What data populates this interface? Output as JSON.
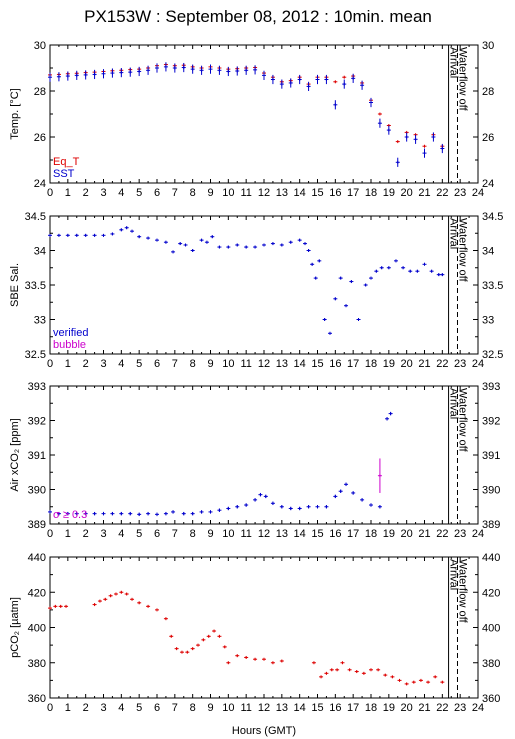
{
  "title": "PX153W : September 08, 2012 : 10min. mean",
  "xaxis": {
    "label": "Hours (GMT)",
    "range": [
      0,
      24
    ],
    "ticks": [
      "0",
      "1",
      "2",
      "3",
      "4",
      "5",
      "6",
      "7",
      "8",
      "9",
      "10",
      "11",
      "12",
      "13",
      "14",
      "15",
      "16",
      "17",
      "18",
      "19",
      "20",
      "21",
      "22",
      "23",
      "24"
    ]
  },
  "events": [
    {
      "label": "Arrival",
      "hour": 22.35,
      "style": "solid"
    },
    {
      "label": "Waterflow off",
      "hour": 22.85,
      "style": "dashed"
    }
  ],
  "colors": {
    "red": "#dd0000",
    "blue": "#0000cc",
    "magenta": "#cc00cc"
  },
  "chart_data": [
    {
      "type": "scatter",
      "ylabel": "Temp. [°C]",
      "ylim": [
        24,
        30
      ],
      "yticks": [
        "24",
        "26",
        "28",
        "30"
      ],
      "grid": false,
      "legend": {
        "placement": "bottom-left",
        "entries": [
          {
            "name": "Eq_T",
            "color": "#dd0000"
          },
          {
            "name": "SST",
            "color": "#0000cc"
          }
        ]
      },
      "series": [
        {
          "name": "Eq_T",
          "color": "#dd0000",
          "err": 0.03,
          "x": [
            0.0,
            0.5,
            1.0,
            1.5,
            2.0,
            2.5,
            3.0,
            3.5,
            4.0,
            4.5,
            5.0,
            5.5,
            6.0,
            6.5,
            7.0,
            7.5,
            8.0,
            8.5,
            9.0,
            9.5,
            10.0,
            10.5,
            11.0,
            11.5,
            12.0,
            12.5,
            13.0,
            13.5,
            14.0,
            14.5,
            15.0,
            15.5,
            16.0,
            16.5,
            17.0,
            17.5,
            18.0,
            18.5,
            19.0,
            19.5,
            20.0,
            20.5,
            21.0,
            21.5,
            22.0
          ],
          "y": [
            28.7,
            28.72,
            28.75,
            28.77,
            28.8,
            28.82,
            28.85,
            28.88,
            28.9,
            28.93,
            28.95,
            29.0,
            29.1,
            29.15,
            29.1,
            29.12,
            29.05,
            29.0,
            29.05,
            29.0,
            28.95,
            28.97,
            29.0,
            29.02,
            28.78,
            28.6,
            28.4,
            28.45,
            28.6,
            28.3,
            28.6,
            28.6,
            28.4,
            28.6,
            28.65,
            28.35,
            27.6,
            27.0,
            26.5,
            25.8,
            26.2,
            26.1,
            25.6,
            26.1,
            25.6
          ]
        },
        {
          "name": "SST",
          "color": "#0000cc",
          "err": 0.2,
          "x": [
            0.0,
            0.5,
            1.0,
            1.5,
            2.0,
            2.5,
            3.0,
            3.5,
            4.0,
            4.5,
            5.0,
            5.5,
            6.0,
            6.5,
            7.0,
            7.5,
            8.0,
            8.5,
            9.0,
            9.5,
            10.0,
            10.5,
            11.0,
            11.5,
            12.0,
            12.5,
            13.0,
            13.5,
            14.0,
            14.5,
            15.0,
            15.5,
            16.0,
            16.5,
            17.0,
            17.5,
            18.0,
            18.5,
            19.0,
            19.5,
            20.0,
            20.5,
            21.0,
            21.5,
            22.0
          ],
          "y": [
            28.6,
            28.62,
            28.65,
            28.68,
            28.7,
            28.72,
            28.75,
            28.78,
            28.8,
            28.82,
            28.85,
            28.9,
            29.0,
            29.05,
            29.0,
            29.02,
            28.95,
            28.9,
            28.95,
            28.9,
            28.85,
            28.87,
            28.9,
            28.92,
            28.68,
            28.5,
            28.3,
            28.35,
            28.5,
            28.2,
            28.5,
            28.5,
            27.4,
            28.3,
            28.55,
            28.25,
            27.5,
            26.6,
            26.3,
            24.9,
            26.0,
            25.9,
            25.3,
            26.0,
            25.5
          ]
        }
      ]
    },
    {
      "type": "scatter",
      "ylabel": "SBE Sal.",
      "ylim": [
        32.5,
        34.5
      ],
      "yticks": [
        "32.5",
        "33",
        "33.5",
        "34",
        "34.5"
      ],
      "grid": false,
      "legend": {
        "placement": "bottom-left",
        "entries": [
          {
            "name": "verified",
            "color": "#0000cc"
          },
          {
            "name": "bubble",
            "color": "#cc00cc"
          }
        ]
      },
      "series": [
        {
          "name": "verified",
          "color": "#0000cc",
          "err": 0.02,
          "x": [
            0.0,
            0.5,
            1.0,
            1.5,
            2.0,
            2.5,
            3.0,
            3.5,
            4.0,
            4.3,
            4.6,
            5.0,
            5.5,
            6.0,
            6.5,
            6.9,
            7.3,
            7.6,
            8.0,
            8.5,
            8.8,
            9.1,
            9.5,
            10.0,
            10.5,
            11.0,
            11.5,
            12.0,
            12.5,
            13.0,
            13.5,
            14.0,
            14.3,
            14.5,
            14.7,
            14.9,
            15.1,
            15.4,
            15.7,
            16.0,
            16.3,
            16.6,
            16.9,
            17.3,
            17.7,
            18.0,
            18.3,
            18.6,
            19.0,
            19.4,
            19.8,
            20.2,
            20.6,
            21.0,
            21.4,
            21.8,
            22.0
          ],
          "y": [
            34.22,
            34.22,
            34.22,
            34.22,
            34.22,
            34.22,
            34.22,
            34.24,
            34.3,
            34.33,
            34.28,
            34.2,
            34.18,
            34.15,
            34.12,
            33.98,
            34.1,
            34.08,
            34.0,
            34.15,
            34.12,
            34.2,
            34.05,
            34.05,
            34.08,
            34.05,
            34.05,
            34.08,
            34.1,
            34.08,
            34.12,
            34.15,
            34.1,
            34.0,
            33.8,
            33.6,
            33.85,
            33.0,
            32.8,
            33.3,
            33.6,
            33.2,
            33.55,
            33.0,
            33.5,
            33.6,
            33.7,
            33.75,
            33.75,
            33.85,
            33.75,
            33.7,
            33.7,
            33.8,
            33.7,
            33.65,
            33.65
          ]
        }
      ]
    },
    {
      "type": "scatter",
      "ylabel": "Air xCO₂ [ppm]",
      "ylim": [
        389,
        393
      ],
      "yticks": [
        "389",
        "390",
        "391",
        "392",
        "393"
      ],
      "grid": false,
      "legend": {
        "placement": "bottom-left",
        "entries": [
          {
            "name": "σ ≥ 0.3",
            "color": "#cc00cc"
          }
        ]
      },
      "series": [
        {
          "name": "",
          "color": "#0000cc",
          "err": 0.05,
          "x": [
            0.0,
            0.5,
            1.0,
            1.5,
            2.0,
            2.5,
            3.0,
            3.5,
            4.0,
            4.5,
            5.0,
            5.5,
            6.0,
            6.5,
            6.9,
            7.5,
            8.0,
            8.5,
            9.0,
            9.5,
            10.0,
            10.5,
            11.0,
            11.5,
            11.8,
            12.1,
            12.5,
            13.0,
            13.5,
            14.0,
            14.5,
            15.0,
            15.5,
            16.0,
            16.3,
            16.6,
            17.0,
            17.5,
            18.0,
            18.5,
            18.9,
            19.1
          ],
          "y": [
            389.35,
            389.3,
            389.3,
            389.3,
            389.3,
            389.3,
            389.3,
            389.3,
            389.3,
            389.3,
            389.28,
            389.3,
            389.28,
            389.3,
            389.35,
            389.3,
            389.3,
            389.35,
            389.35,
            389.4,
            389.45,
            389.5,
            389.55,
            389.7,
            389.85,
            389.8,
            389.6,
            389.5,
            389.45,
            389.45,
            389.5,
            389.5,
            389.5,
            389.8,
            389.95,
            390.15,
            389.9,
            389.7,
            389.55,
            389.5,
            392.05,
            392.2
          ]
        },
        {
          "name": "σ ≥ 0.3",
          "color": "#cc00cc",
          "err": 0.5,
          "x": [
            18.5
          ],
          "y": [
            390.4
          ]
        }
      ]
    },
    {
      "type": "scatter",
      "ylabel": "pCO₂ [µatm]",
      "ylim": [
        360,
        440
      ],
      "yticks": [
        "360",
        "380",
        "400",
        "420",
        "440"
      ],
      "grid": false,
      "series": [
        {
          "name": "",
          "color": "#dd0000",
          "err": 0.6,
          "x": [
            0.0,
            0.3,
            0.6,
            0.9,
            2.5,
            2.8,
            3.1,
            3.4,
            3.7,
            4.0,
            4.3,
            4.6,
            5.0,
            5.5,
            6.0,
            6.5,
            6.8,
            7.1,
            7.4,
            7.7,
            8.0,
            8.3,
            8.6,
            8.9,
            9.2,
            9.5,
            9.8,
            10.0,
            10.5,
            11.0,
            11.5,
            12.0,
            12.5,
            13.0,
            14.8,
            15.2,
            15.5,
            15.8,
            16.1,
            16.4,
            16.8,
            17.2,
            17.6,
            18.0,
            18.4,
            18.8,
            19.2,
            19.6,
            20.0,
            20.4,
            20.8,
            21.2,
            21.6,
            22.0
          ],
          "y": [
            411,
            412,
            412,
            412,
            413,
            415,
            416,
            418,
            419,
            420,
            419,
            416,
            414,
            412,
            410,
            405,
            395,
            388,
            386,
            386,
            388,
            390,
            393,
            395,
            398,
            395,
            389,
            380,
            384,
            383,
            382,
            382,
            380,
            381,
            380,
            372,
            374,
            376,
            376,
            380,
            376,
            375,
            374,
            376,
            376,
            373,
            372,
            370,
            368,
            369,
            370,
            369,
            372,
            369
          ]
        }
      ]
    }
  ]
}
